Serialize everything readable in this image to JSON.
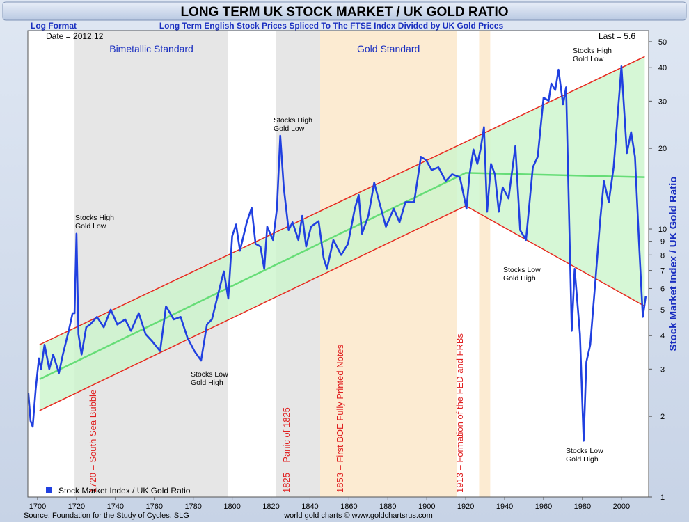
{
  "chart_data": {
    "type": "line",
    "title": "LONG TERM UK STOCK MARKET / UK GOLD RATIO",
    "scale_note": "Log Format",
    "subtitle": "Long Term English Stock Prices Spliced To The FTSE Index Divided by UK Gold Prices",
    "date_label": "Date = 2012.12",
    "last_label": "Last = 5.6",
    "y_label": "Stock Market Index / UK Gold Ratio",
    "source": "Source: Foundation for the Study of Cycles, SLG",
    "credit": "world gold charts © www.goldchartsrus.com",
    "log_scale": true,
    "legend": "bottom-left",
    "xlim": [
      1695,
      2014
    ],
    "ylim": [
      1,
      55
    ],
    "xticks": [
      1700,
      1720,
      1740,
      1760,
      1780,
      1800,
      1820,
      1840,
      1860,
      1880,
      1900,
      1920,
      1940,
      1960,
      1980,
      2000
    ],
    "yticks": [
      1,
      2,
      3,
      4,
      5,
      6,
      7,
      8,
      9,
      10,
      20,
      30,
      40,
      50
    ],
    "bands": [
      {
        "from": 1719,
        "to": 1798,
        "color": "#e6e6e6",
        "label": "Bimetallic Standard"
      },
      {
        "from": 1822.6,
        "to": 1845.2,
        "color": "#e6e6e6"
      },
      {
        "from": 1845.2,
        "to": 1915.4,
        "color": "#fcebd2",
        "label": "Gold Standard"
      },
      {
        "from": 1926.9,
        "to": 1932.6,
        "color": "#fcebd2"
      }
    ],
    "events": [
      "1720 – South Sea Bubble",
      "1825 – Panic of 1825",
      "1853 – First BOE Fully Printed Notes",
      "1913 – Formation of the FED and FRBs"
    ],
    "annotations": [
      [
        "Stocks High",
        "Gold Low"
      ],
      [
        "Stocks High",
        "Gold Low"
      ],
      [
        "Stocks Low",
        "Gold High"
      ],
      [
        "Stocks Low",
        "Gold High"
      ],
      [
        "Stocks High",
        "Gold Low"
      ],
      [
        "Stocks Low",
        "Gold High"
      ]
    ],
    "channel": {
      "fill": "#ccf5cc",
      "upper": {
        "color": "#e8281e",
        "x": [
          1701,
          2012
        ],
        "values": [
          3.7,
          44
        ]
      },
      "lower": {
        "color": "#e8281e",
        "x": [
          1701,
          1920,
          2012
        ],
        "values": [
          2.1,
          12.2,
          5.15
        ]
      },
      "middle": {
        "color": "#66dd77",
        "x": [
          1701,
          1920,
          2012
        ],
        "values": [
          2.75,
          16.2,
          15.6
        ]
      }
    },
    "series": [
      {
        "name": "Stock Market Index / UK Gold Ratio",
        "color": "#2040e0",
        "x": [
          1695.3,
          1696.4,
          1697.5,
          1699,
          1700.7,
          1701.8,
          1703.6,
          1706,
          1708,
          1711,
          1713,
          1716,
          1718,
          1719,
          1720,
          1721,
          1722.6,
          1725,
          1727,
          1730.5,
          1734,
          1737.6,
          1741,
          1745,
          1748,
          1752,
          1755.5,
          1759,
          1763,
          1766,
          1770,
          1773.5,
          1777,
          1780.6,
          1784,
          1787,
          1789.6,
          1793,
          1795.7,
          1798,
          1800,
          1802,
          1804,
          1807.5,
          1810,
          1812,
          1814.5,
          1816.5,
          1818,
          1821,
          1823,
          1824.7,
          1826.5,
          1829,
          1831,
          1834,
          1836,
          1838,
          1840.5,
          1844.4,
          1847,
          1848.7,
          1852,
          1856,
          1859.5,
          1863,
          1865,
          1866.7,
          1870,
          1873,
          1875.6,
          1879,
          1883,
          1886,
          1889,
          1893.5,
          1897,
          1899.6,
          1902.5,
          1906,
          1909.7,
          1913,
          1917,
          1920.4,
          1922,
          1924,
          1926,
          1927.6,
          1929.4,
          1931,
          1933,
          1935,
          1937,
          1939,
          1942,
          1945.5,
          1948,
          1951,
          1954.5,
          1957,
          1960,
          1962.6,
          1964,
          1966,
          1967.7,
          1970,
          1971.6,
          1974.5,
          1976,
          1978.7,
          1980.6,
          1982,
          1984,
          1986.7,
          1989,
          1991,
          1993.5,
          1996,
          2000,
          2002.8,
          2005,
          2007,
          2009,
          2011,
          2012.5
        ],
        "values": [
          2.44,
          1.92,
          1.83,
          2.51,
          3.29,
          3.0,
          3.7,
          3.0,
          3.4,
          2.9,
          3.4,
          4.17,
          4.85,
          4.85,
          9.6,
          4.05,
          3.4,
          4.3,
          4.4,
          4.7,
          4.3,
          5.0,
          4.4,
          4.6,
          4.17,
          4.85,
          4.05,
          3.8,
          3.5,
          5.15,
          4.6,
          4.7,
          3.93,
          3.5,
          3.23,
          4.4,
          4.6,
          5.8,
          6.95,
          5.5,
          9.4,
          10.4,
          8.3,
          10.6,
          12.0,
          8.8,
          8.6,
          7.1,
          10.2,
          9.1,
          11.9,
          22.3,
          14.3,
          9.9,
          10.6,
          9.1,
          11.2,
          8.6,
          10.2,
          10.7,
          7.8,
          7.1,
          9.1,
          8.0,
          8.8,
          11.9,
          13.4,
          9.6,
          11.2,
          14.9,
          12.6,
          10.2,
          11.9,
          10.6,
          12.6,
          12.6,
          18.6,
          18.1,
          16.6,
          17.0,
          15.1,
          16.0,
          15.6,
          11.9,
          16.0,
          19.8,
          17.5,
          19.8,
          24.0,
          11.6,
          17.5,
          16.0,
          11.6,
          14.3,
          13.0,
          20.4,
          9.9,
          9.1,
          17.0,
          18.6,
          30.9,
          30.1,
          34.9,
          33.0,
          39.3,
          29.2,
          33.8,
          4.17,
          7.1,
          4.05,
          1.62,
          3.19,
          3.7,
          6.5,
          10.6,
          15.1,
          12.6,
          17.0,
          40.5,
          19.2,
          23.0,
          18.6,
          9.1,
          4.7,
          5.6
        ]
      }
    ]
  }
}
